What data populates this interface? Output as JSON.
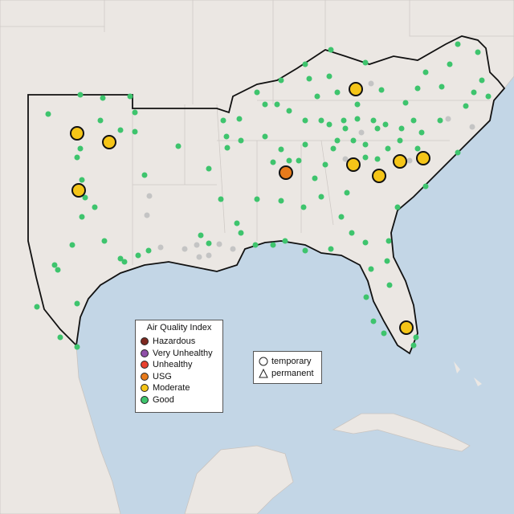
{
  "legend": {
    "title": "Air Quality Index",
    "items": [
      {
        "label": "Hazardous",
        "color": "#7e2a20"
      },
      {
        "label": "Very Unhealthy",
        "color": "#8f4fa8"
      },
      {
        "label": "Unhealthy",
        "color": "#e8412f"
      },
      {
        "label": "USG",
        "color": "#e87b1c"
      },
      {
        "label": "Moderate",
        "color": "#f5c518"
      },
      {
        "label": "Good",
        "color": "#3ec46d"
      }
    ]
  },
  "shape_legend": {
    "items": [
      {
        "label": "temporary"
      },
      {
        "label": "permanent"
      }
    ]
  }
}
